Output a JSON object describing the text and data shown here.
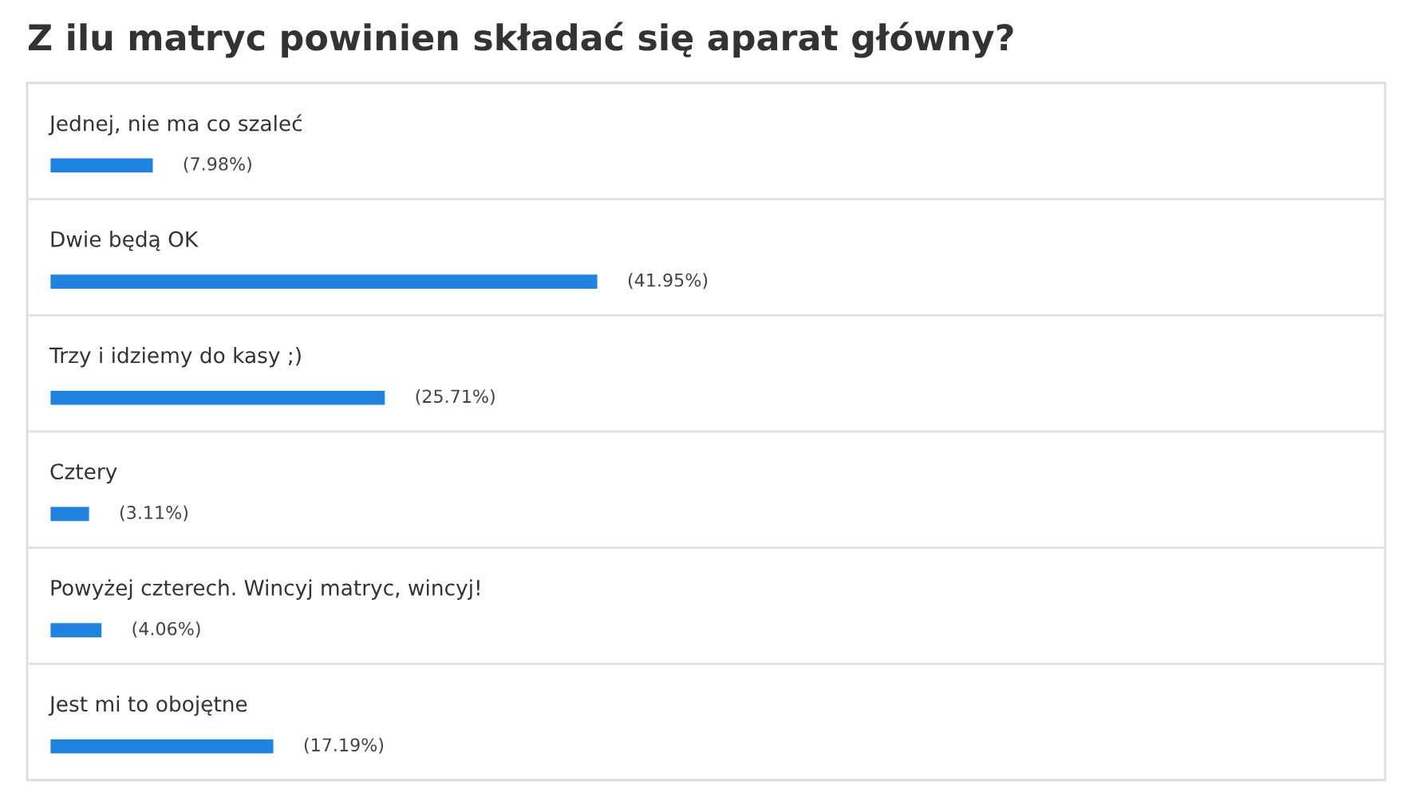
{
  "chart_data": {
    "type": "bar",
    "orientation": "horizontal",
    "title": "Z ilu matryc powinien składać się aparat główny?",
    "categories": [
      "Jednej, nie ma co szaleć",
      "Dwie będą OK",
      "Trzy i idziemy do kasy ;)",
      "Cztery",
      "Powyżej czterech. Wincyj matryc, wincyj!",
      "Jest mi to obojętne"
    ],
    "values": [
      7.98,
      41.95,
      25.71,
      3.11,
      4.06,
      17.19
    ],
    "value_labels": [
      "(7.98%)",
      "(41.95%)",
      "(25.71%)",
      "(3.11%)",
      "(4.06%)",
      "(17.19%)"
    ],
    "color": "#1e84e0"
  }
}
